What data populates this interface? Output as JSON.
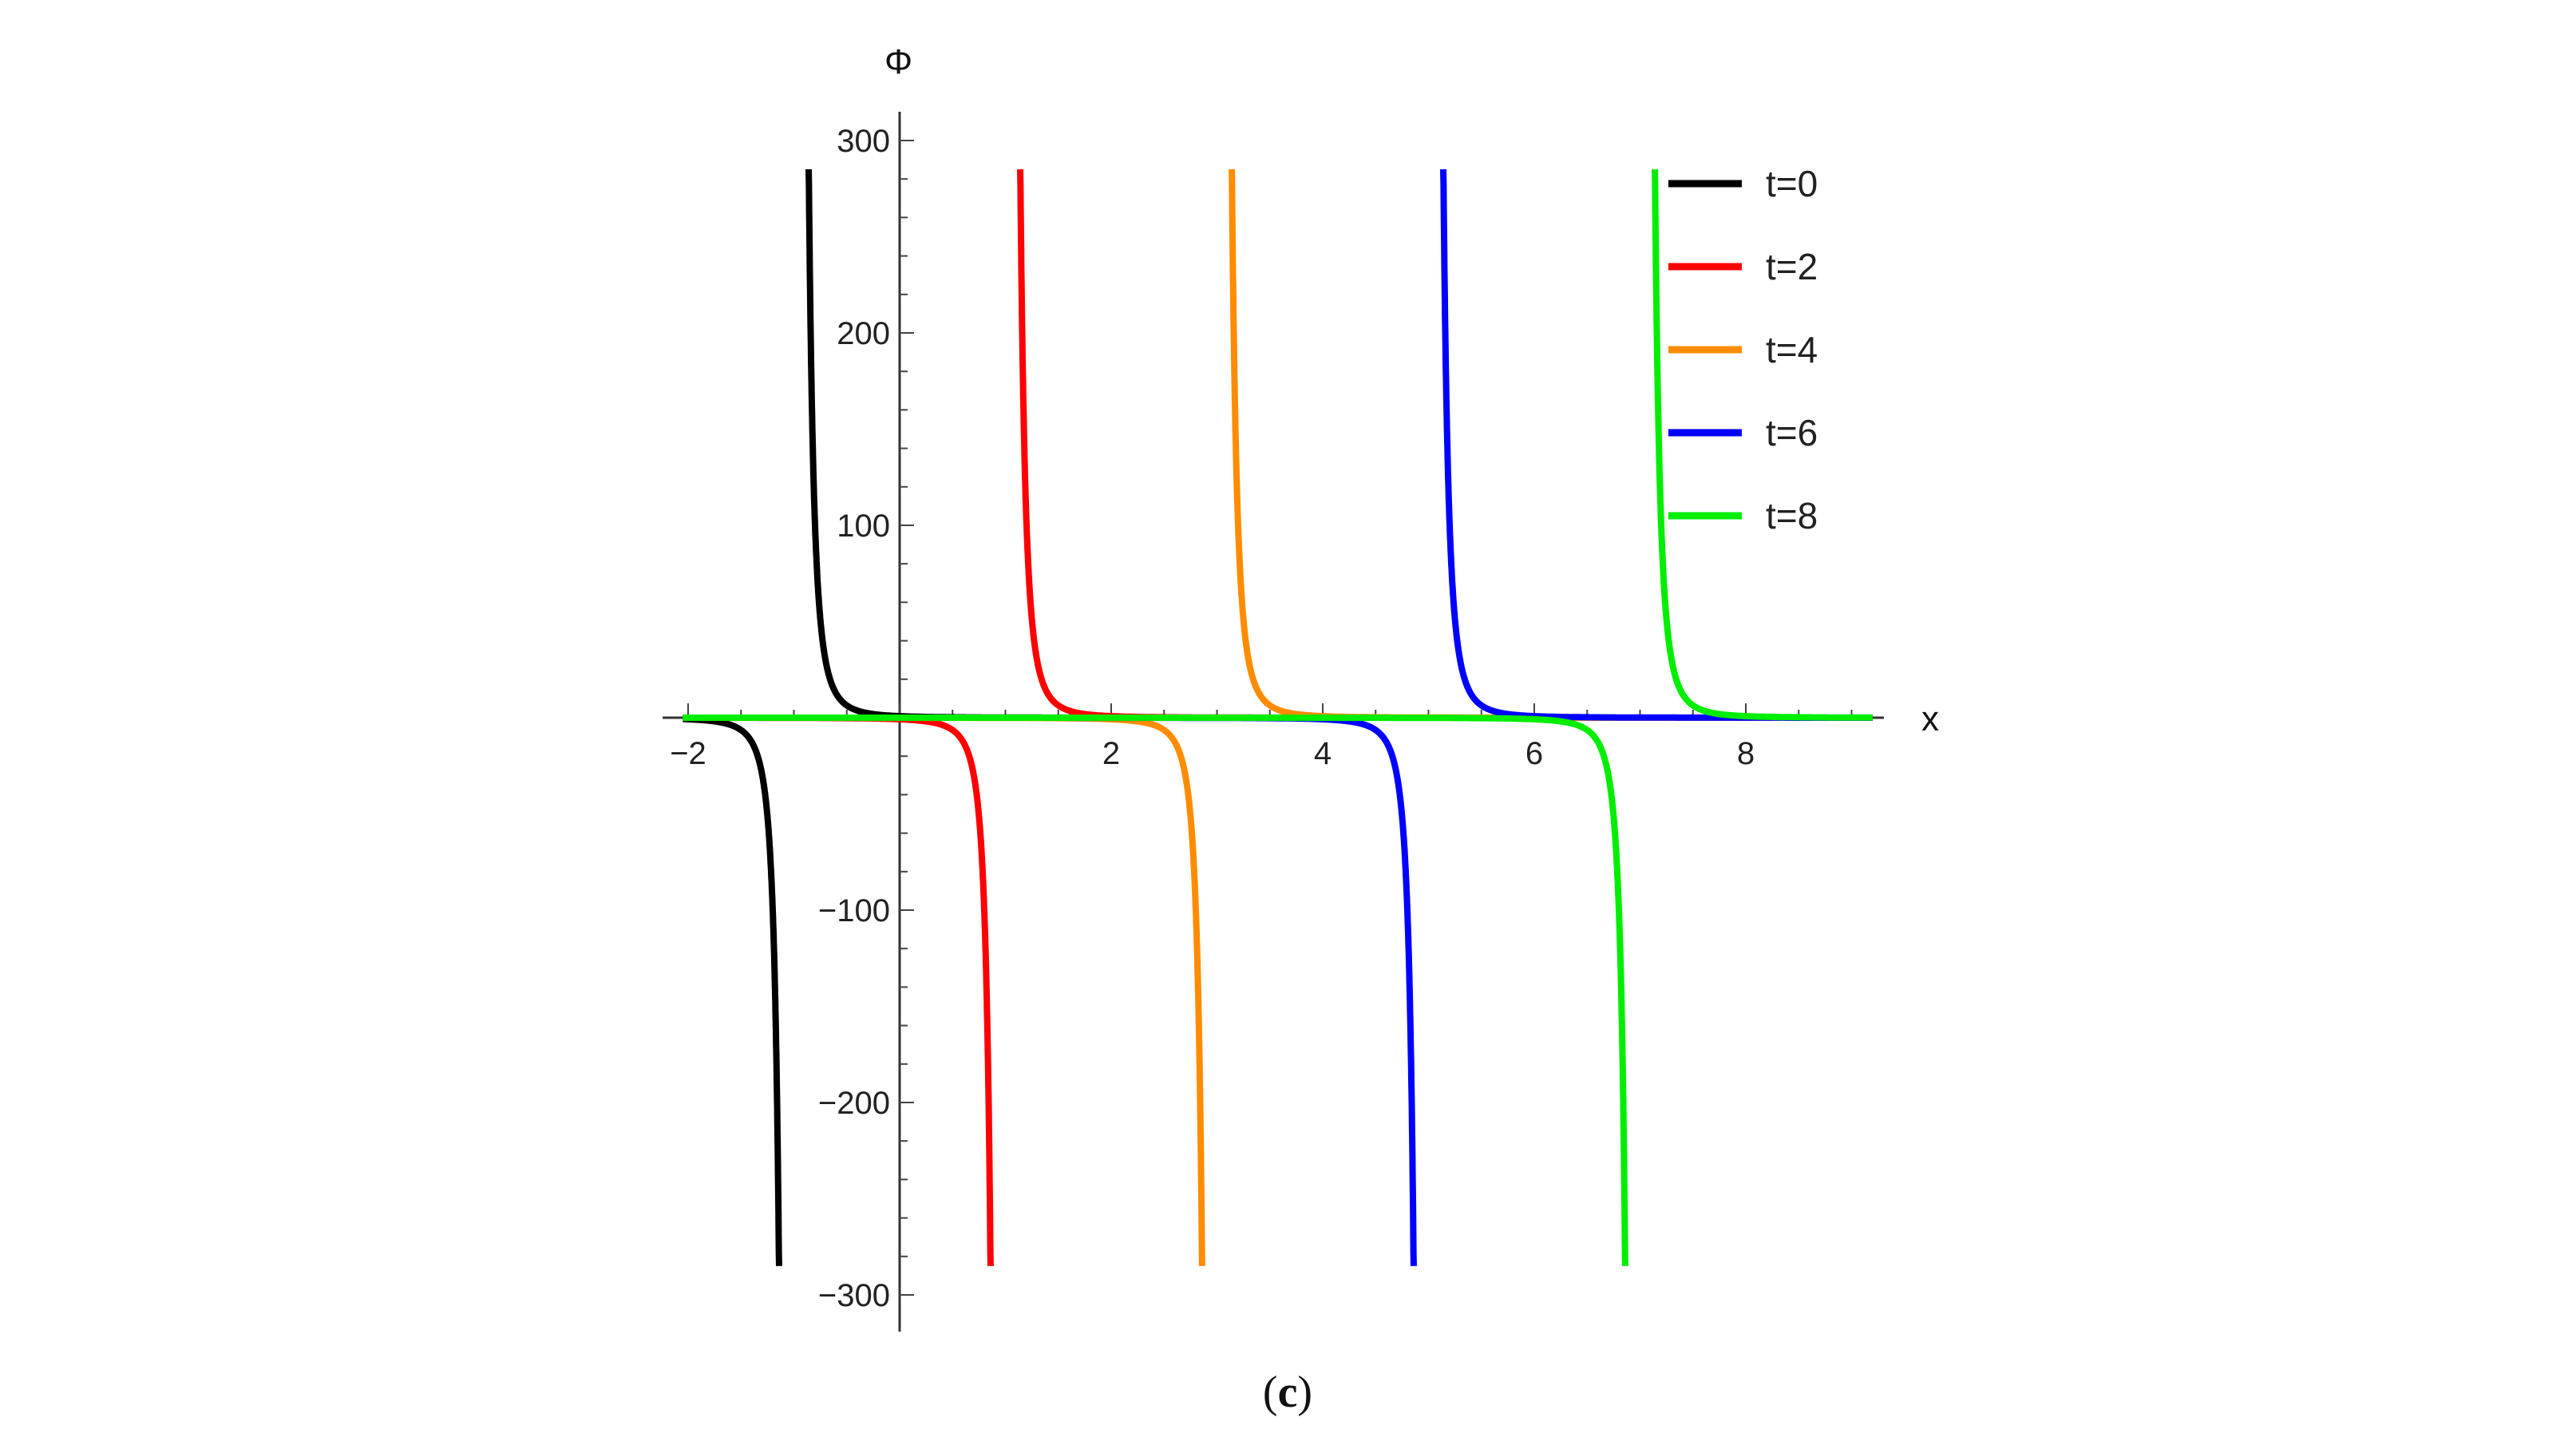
{
  "chart_data": {
    "type": "line",
    "xlabel": "x",
    "ylabel": "Φ",
    "xlim": [
      -2.1,
      9.2
    ],
    "ylim": [
      -315,
      305
    ],
    "x_ticks": [
      -2,
      2,
      4,
      6,
      8
    ],
    "x_tick_labels": [
      "−2",
      "2",
      "4",
      "6",
      "8"
    ],
    "y_ticks": [
      300,
      200,
      100,
      -100,
      -200,
      -300
    ],
    "y_tick_labels": [
      "300",
      "200",
      "100",
      "−100",
      "−200",
      "−300"
    ],
    "legend_position": "top-right",
    "series": [
      {
        "name": "t=0",
        "color": "#000000",
        "pole_x": -1.0
      },
      {
        "name": "t=2",
        "color": "#ff0000",
        "pole_x": 1.0
      },
      {
        "name": "t=4",
        "color": "#ff8c00",
        "pole_x": 3.0
      },
      {
        "name": "t=6",
        "color": "#0000ff",
        "pole_x": 5.0
      },
      {
        "name": "t=8",
        "color": "#00ee00",
        "pole_x": 7.0
      }
    ],
    "clip_y": [
      -285,
      285
    ]
  },
  "caption": {
    "open": "(",
    "letter": "c",
    "close": ")"
  }
}
